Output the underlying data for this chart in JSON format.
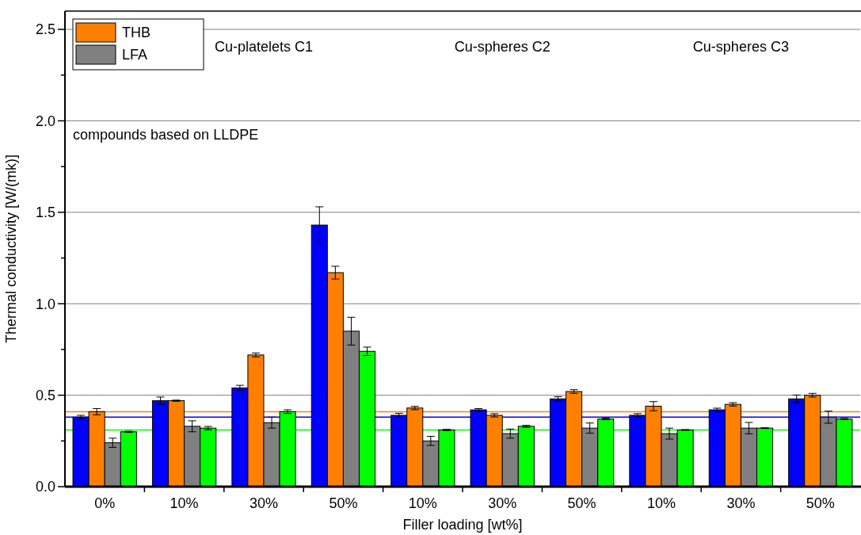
{
  "chart_data": {
    "type": "bar",
    "xlabel": "Filler loading [wt%]",
    "ylabel": "Thermal conductivity [W/(mk)]",
    "categories": [
      "0%",
      "10%",
      "30%",
      "50%",
      "10%",
      "30%",
      "50%",
      "10%",
      "30%",
      "50%"
    ],
    "series": [
      {
        "color": "#0000ff",
        "values": [
          0.38,
          0.47,
          0.54,
          1.43,
          0.39,
          0.42,
          0.48,
          0.39,
          0.42,
          0.48
        ],
        "errors": [
          0.01,
          0.02,
          0.014,
          0.1,
          0.011,
          0.007,
          0.012,
          0.009,
          0.009,
          0.021
        ]
      },
      {
        "name": "THB",
        "color": "#ff8000",
        "values": [
          0.41,
          0.47,
          0.72,
          1.17,
          0.43,
          0.39,
          0.52,
          0.44,
          0.45,
          0.5
        ],
        "errors": [
          0.017,
          0.003,
          0.011,
          0.035,
          0.009,
          0.009,
          0.01,
          0.025,
          0.009,
          0.01
        ]
      },
      {
        "name": "LFA",
        "color": "#808080",
        "values": [
          0.24,
          0.33,
          0.35,
          0.85,
          0.25,
          0.29,
          0.32,
          0.29,
          0.32,
          0.38
        ],
        "errors": [
          0.025,
          0.03,
          0.03,
          0.076,
          0.025,
          0.025,
          0.028,
          0.03,
          0.031,
          0.033
        ]
      },
      {
        "color": "#00ff00",
        "values": [
          0.3,
          0.32,
          0.41,
          0.74,
          0.31,
          0.33,
          0.37,
          0.31,
          0.32,
          0.37
        ],
        "errors": [
          0.003,
          0.009,
          0.01,
          0.023,
          0.003,
          0.005,
          0.004,
          0.002,
          0.002,
          0.003
        ]
      }
    ],
    "ylim": [
      0,
      2.6
    ],
    "yticks": [
      {
        "value": 0,
        "label": "0.0"
      },
      {
        "value": 0.25,
        "label": null
      },
      {
        "value": 0.5,
        "label": "0.5"
      },
      {
        "value": 0.75,
        "label": null
      },
      {
        "value": 1,
        "label": "1.0"
      },
      {
        "value": 1.25,
        "label": null
      },
      {
        "value": 1.5,
        "label": "1.5"
      },
      {
        "value": 1.75,
        "label": null
      },
      {
        "value": 2,
        "label": "2.0"
      },
      {
        "value": 2.25,
        "label": null
      },
      {
        "value": 2.5,
        "label": "2.5"
      }
    ],
    "grid": "y",
    "legend": "top left",
    "ref_lines": [
      {
        "axis": "y",
        "value": 0.41,
        "color": "#ff8000"
      },
      {
        "axis": "y",
        "value": 0.38,
        "color": "#0000ff"
      },
      {
        "axis": "y",
        "value": 0.31,
        "color": "#00ff00"
      }
    ],
    "annotations": [
      "compounds based on LLDPE",
      "Cu-platelets C1",
      "Cu-spheres C2",
      "Cu-spheres C3"
    ]
  }
}
